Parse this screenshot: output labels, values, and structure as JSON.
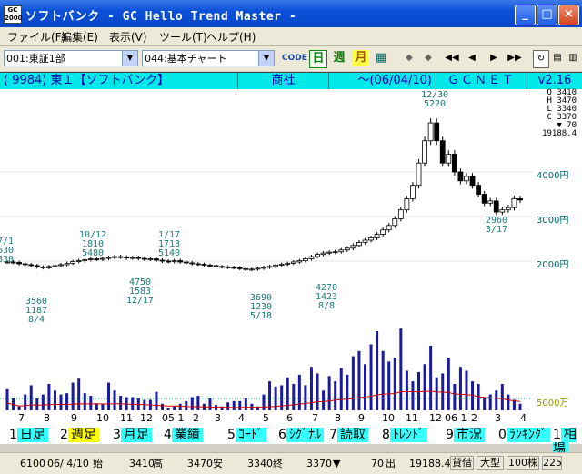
{
  "window": {
    "app_icon_top": "GC",
    "app_icon_bottom": "2000",
    "title": "ソフトバンク - GC Hello Trend Master -",
    "minimize": "_",
    "maximize": "□",
    "close": "×"
  },
  "menu": [
    "ファイル(F)",
    "編集(E)",
    "表示(V)",
    "ツール(T)",
    "ヘルプ(H)"
  ],
  "toolbar": {
    "market_select": "001:東証1部",
    "chart_select": "044:基本チャート",
    "code_btn": "CODE",
    "daily_btn": "日",
    "weekly_btn": "週",
    "monthly_btn": "月",
    "nav": [
      "◆",
      "◆",
      "◀◀",
      "◀",
      "▶",
      "▶▶"
    ],
    "zoom": "225"
  },
  "info": {
    "code": "( 9984) 東１【ソフトバンク】",
    "sector": "商社",
    "date": "～(06/04/10)",
    "provider": "ＧＣＮＥＴ",
    "version": "v2.16"
  },
  "ohlc": {
    "o": "O  3410",
    "h": "H  3470",
    "l": "L  3340",
    "c": "C  3370",
    "change": "▼    70",
    "ratio": "19188.4"
  },
  "chart_data": {
    "type": "candlestick-with-volume",
    "price_axis_labels": [
      "4000円",
      "3000円",
      "2000円"
    ],
    "volume_axis_label": "5000万",
    "month_labels": [
      "7",
      "8",
      "9",
      "10",
      "11",
      "12",
      "05 1",
      "2",
      "3",
      "4",
      "5",
      "6",
      "7",
      "8",
      "9",
      "10",
      "11",
      "12",
      "06 1",
      "2",
      "3",
      "4"
    ],
    "annotations": [
      {
        "lines": [
          "7/1",
          "630",
          "830"
        ]
      },
      {
        "lines": [
          "3560",
          "1187",
          "8/4"
        ]
      },
      {
        "lines": [
          "10/12",
          "1810",
          "5480"
        ]
      },
      {
        "lines": [
          "4750",
          "1583",
          "12/17"
        ]
      },
      {
        "lines": [
          "1/17",
          "1713",
          "5140"
        ]
      },
      {
        "lines": [
          "3690",
          "1230",
          "5/18"
        ]
      },
      {
        "lines": [
          "4270",
          "1423",
          "8/8"
        ]
      },
      {
        "lines": [
          "12/30",
          "5220"
        ]
      },
      {
        "lines": [
          "2960",
          "3/17"
        ]
      }
    ],
    "weekly_close": [
      1980,
      1970,
      1940,
      1920,
      1900,
      1870,
      1850,
      1880,
      1900,
      1920,
      1950,
      1990,
      2010,
      2030,
      2050,
      2040,
      2060,
      2080,
      2100,
      2090,
      2070,
      2080,
      2060,
      2040,
      2050,
      2020,
      2000,
      1990,
      2010,
      1980,
      1960,
      1940,
      1930,
      1910,
      1900,
      1880,
      1870,
      1860,
      1850,
      1830,
      1810,
      1820,
      1840,
      1860,
      1880,
      1910,
      1930,
      1950,
      1980,
      2010,
      2050,
      2100,
      2150,
      2180,
      2200,
      2210,
      2250,
      2290,
      2350,
      2420,
      2470,
      2520,
      2600,
      2700,
      2800,
      2950,
      3150,
      3400,
      3700,
      4200,
      4700,
      5100,
      4700,
      4200,
      4400,
      4000,
      3800,
      3900,
      3700,
      3500,
      3300,
      3350,
      3100,
      3150,
      3200,
      3400,
      3370
    ],
    "weekly_volume": [
      16,
      9,
      3,
      12,
      19,
      9,
      12,
      20,
      15,
      12,
      13,
      21,
      24,
      13,
      11,
      5,
      5,
      21,
      15,
      11,
      10,
      10,
      9,
      8,
      8,
      14,
      5,
      2,
      3,
      5,
      7,
      10,
      11,
      5,
      9,
      4,
      3,
      6,
      7,
      7,
      9,
      5,
      3,
      12,
      22,
      18,
      19,
      25,
      20,
      27,
      19,
      33,
      28,
      15,
      26,
      22,
      32,
      27,
      41,
      45,
      35,
      50,
      60,
      45,
      37,
      40,
      62,
      30,
      22,
      29,
      35,
      49,
      25,
      28,
      40,
      20,
      33,
      30,
      22,
      20,
      10,
      12,
      15,
      20,
      12,
      8,
      5
    ]
  },
  "function_keys": [
    {
      "num": "1",
      "label": "日足",
      "active": false
    },
    {
      "num": "2",
      "label": "週足",
      "active": true
    },
    {
      "num": "3",
      "label": "月足",
      "active": false
    },
    {
      "num": "4",
      "label": "業績",
      "active": false
    },
    {
      "num": "5",
      "label": "ｺｰﾄﾞ",
      "active": false
    },
    {
      "num": "6",
      "label": "ｼｸﾞﾅﾙ",
      "active": false
    },
    {
      "num": "7",
      "label": "読取",
      "active": false
    },
    {
      "num": "8",
      "label": "ﾄﾚﾝﾄﾞ",
      "active": false
    },
    {
      "num": "9",
      "label": "市況",
      "active": false
    },
    {
      "num": "0",
      "label": "ﾗﾝｷﾝｸﾞ",
      "active": false
    },
    {
      "num": "1",
      "label": "相場",
      "active": false
    }
  ],
  "status": {
    "count": "6100",
    "date": "06/ 4/10",
    "open_label": "始",
    "open": "3410",
    "high_label": "高",
    "high": "3470",
    "low_label": "安",
    "low": "3340",
    "close_label": "終",
    "close": "3370",
    "change_sign": "▼",
    "change": "70",
    "volume_label": "出",
    "volume": "19188.4",
    "credit": "貸借",
    "size": "大型",
    "unit": "100株",
    "zoom": "225"
  },
  "colors": {
    "candle_up": "#ffffff",
    "candle_down": "#000000",
    "volume_bar": "#1a1aa0",
    "volume_ma": "#cc0000",
    "annotation": "#1b7a7a",
    "price_label": "#006666",
    "grid": "#00cc66"
  }
}
